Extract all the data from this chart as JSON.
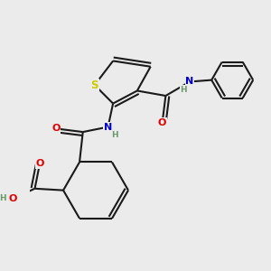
{
  "background_color": "#ebebeb",
  "figure_size": [
    3.0,
    3.0
  ],
  "dpi": 100,
  "atom_colors": {
    "C": "#1a1a1a",
    "N": "#0000cc",
    "O": "#dd0000",
    "S": "#cccc00",
    "H": "#6a9a6a"
  },
  "font_size": 8.0,
  "bond_lw": 1.5,
  "dbo": 0.055,
  "xlim": [
    -0.5,
    3.2
  ],
  "ylim": [
    -1.6,
    1.7
  ]
}
